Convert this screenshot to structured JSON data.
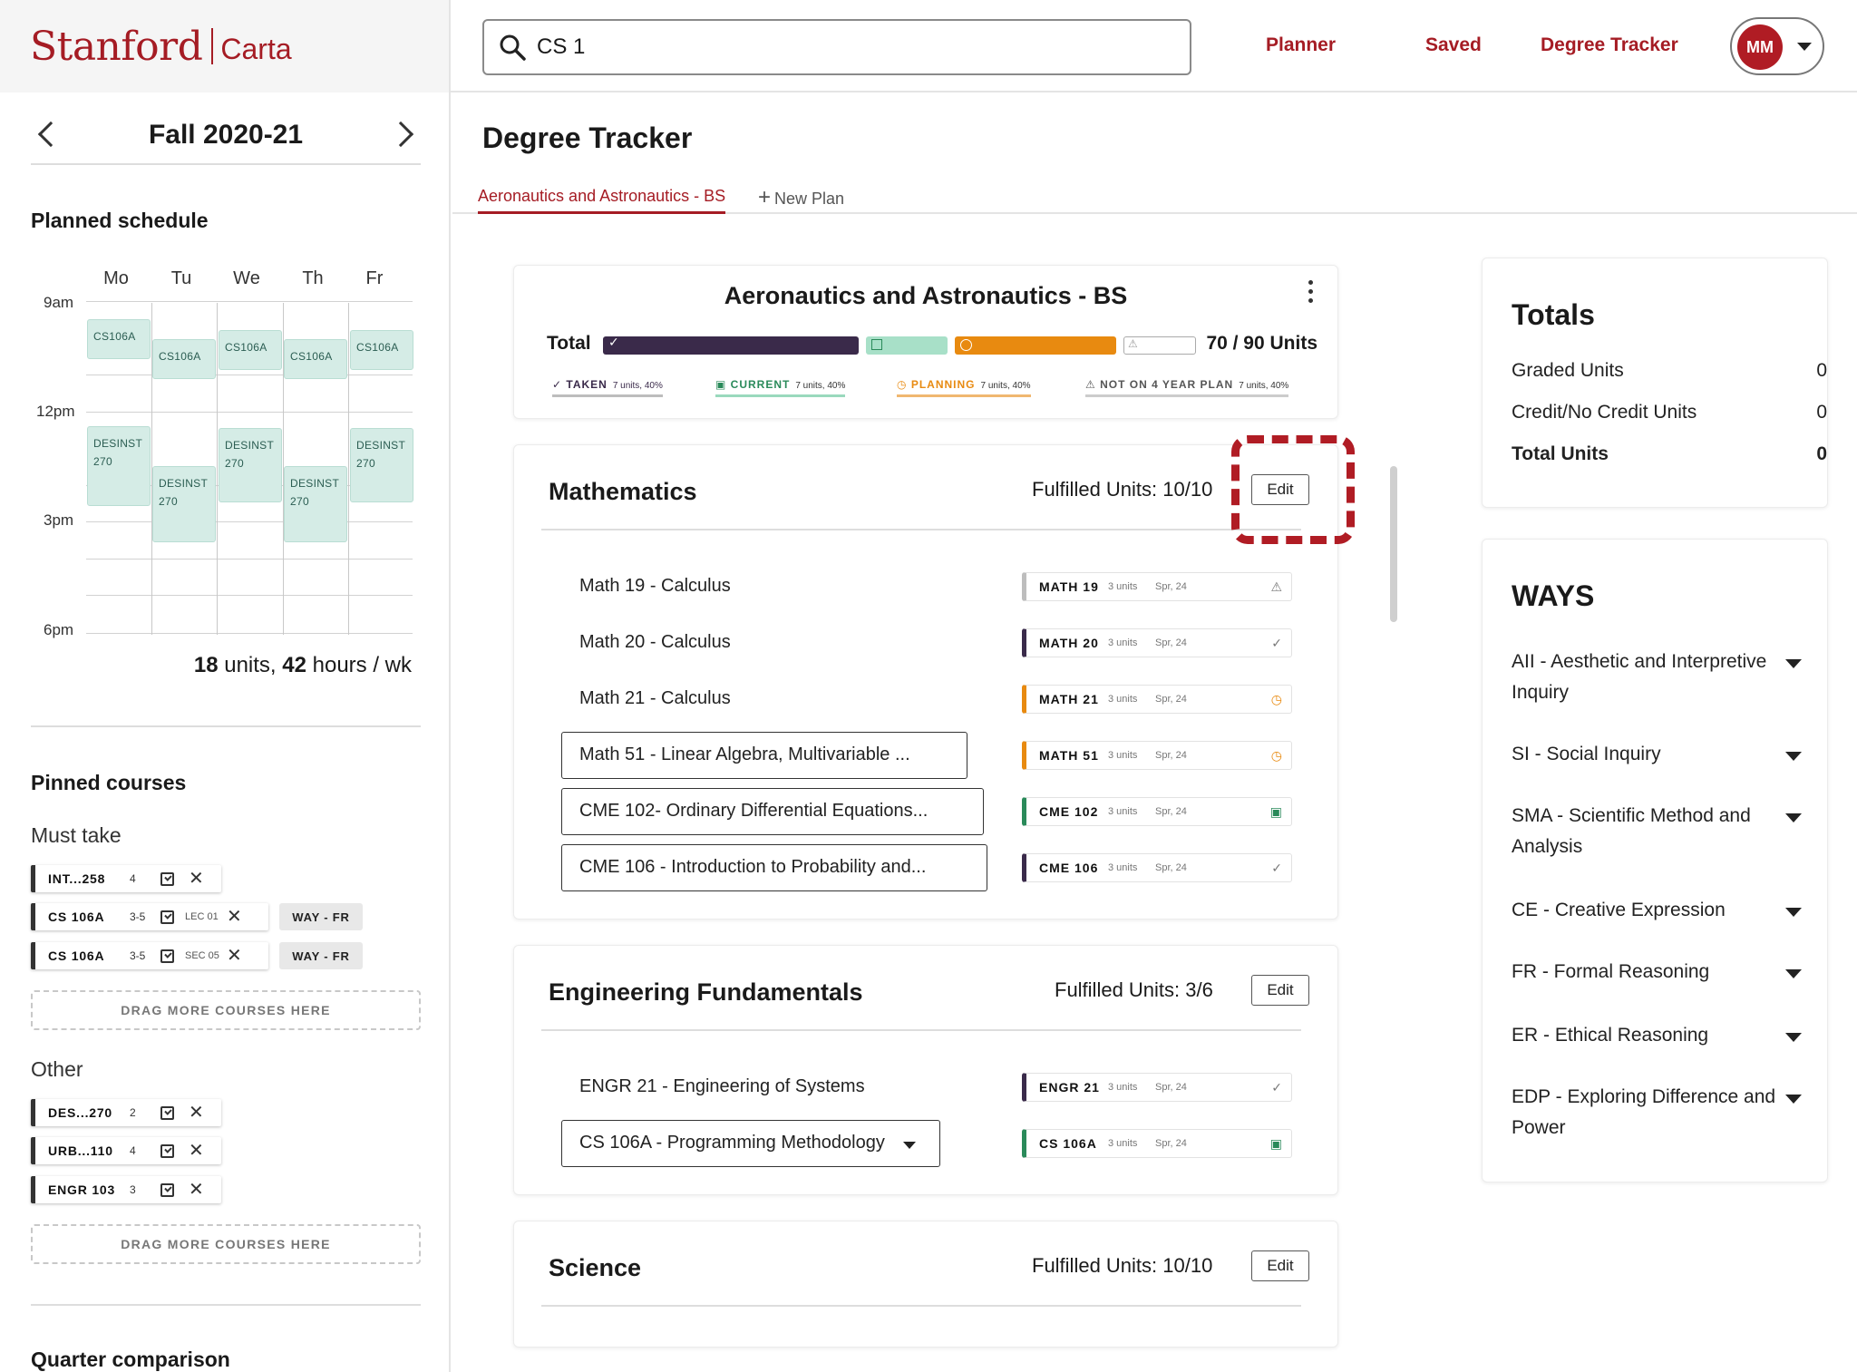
{
  "brand": {
    "name": "Stanford",
    "product": "Carta"
  },
  "search": {
    "value": "CS 1",
    "placeholder": ""
  },
  "nav": {
    "planner": "Planner",
    "saved": "Saved",
    "degree_tracker": "Degree Tracker",
    "avatar_initials": "MM"
  },
  "sidebar": {
    "term": "Fall 2020-21",
    "planned_schedule_title": "Planned schedule",
    "days": [
      "Mo",
      "Tu",
      "We",
      "Th",
      "Fr"
    ],
    "times": [
      "9am",
      "12pm",
      "3pm",
      "6pm"
    ],
    "blocks": [
      {
        "l1": "CS106A",
        "l2": ""
      },
      {
        "l1": "CS106A",
        "l2": ""
      },
      {
        "l1": "CS106A",
        "l2": ""
      },
      {
        "l1": "CS106A",
        "l2": ""
      },
      {
        "l1": "CS106A",
        "l2": ""
      },
      {
        "l1": "DESINST",
        "l2": "270"
      },
      {
        "l1": "DESINST",
        "l2": "270"
      },
      {
        "l1": "DESINST",
        "l2": "270"
      },
      {
        "l1": "DESINST",
        "l2": "270"
      },
      {
        "l1": "DESINST",
        "l2": "270"
      }
    ],
    "units_count": "18",
    "units_text": " units, ",
    "hours_count": "42",
    "hours_text": " hours / wk",
    "pinned_title": "Pinned courses",
    "must_take_title": "Must take",
    "must_take": [
      {
        "code": "INT...258",
        "units": "4",
        "section": "",
        "way": ""
      },
      {
        "code": "CS 106A",
        "units": "3-5",
        "section": "LEC 01",
        "way": "WAY - FR"
      },
      {
        "code": "CS 106A",
        "units": "3-5",
        "section": "SEC 05",
        "way": "WAY - FR"
      }
    ],
    "drag_more": "DRAG MORE COURSES HERE",
    "other_title": "Other",
    "other": [
      {
        "code": "DES...270",
        "units": "2"
      },
      {
        "code": "URB...110",
        "units": "4"
      },
      {
        "code": "ENGR 103",
        "units": "3"
      }
    ],
    "quarter_comparison_title": "Quarter comparison"
  },
  "main": {
    "title": "Degree Tracker",
    "tabs": {
      "active": "Aeronautics and Astronautics - BS",
      "new_plan": "New Plan"
    },
    "summary": {
      "title": "Aeronautics and Astronautics - BS",
      "total_label": "Total",
      "total_value": "70 / 90 Units",
      "legend": [
        {
          "label": "TAKEN",
          "detail": "7 units, 40%",
          "color": "#3a2a4a"
        },
        {
          "label": "CURRENT",
          "detail": "7 units, 40%",
          "color": "#2a8a5a"
        },
        {
          "label": "PLANNING",
          "detail": "7 units, 40%",
          "color": "#e88a10"
        },
        {
          "label": "NOT ON 4 YEAR PLAN",
          "detail": "7 units, 40%",
          "color": "#9a9a9a"
        }
      ]
    },
    "requirements": [
      {
        "title": "Mathematics",
        "fulfilled": "Fulfilled Units: 10/10",
        "edit": "Edit",
        "courses": [
          {
            "name": "Math 19  - Calculus",
            "code": "MATH 19",
            "units": "3 units",
            "term": "Spr, 24",
            "status": "warning"
          },
          {
            "name": "Math 20  - Calculus",
            "code": "MATH 20",
            "units": "3 units",
            "term": "Spr, 24",
            "status": "taken"
          },
          {
            "name": "Math 21  - Calculus",
            "code": "MATH 21",
            "units": "3 units",
            "term": "Spr, 24",
            "status": "planning"
          },
          {
            "name": "Math 51 - Linear Algebra, Multivariable ...",
            "code": "MATH 51",
            "units": "3 units",
            "term": "Spr, 24",
            "status": "planning"
          },
          {
            "name": "CME 102- Ordinary Differential Equations...",
            "code": "CME 102",
            "units": "3 units",
            "term": "Spr, 24",
            "status": "current"
          },
          {
            "name": "CME 106 - Introduction to Probability and...",
            "code": "CME 106",
            "units": "3 units",
            "term": "Spr, 24",
            "status": "taken"
          }
        ]
      },
      {
        "title": "Engineering Fundamentals",
        "fulfilled": "Fulfilled Units: 3/6",
        "edit": "Edit",
        "courses": [
          {
            "name": "ENGR 21 - Engineering of Systems",
            "code": "ENGR 21",
            "units": "3 units",
            "term": "Spr, 24",
            "status": "taken"
          },
          {
            "name": "CS 106A - Programming Methodology",
            "code": "CS 106A",
            "units": "3 units",
            "term": "Spr, 24",
            "status": "current"
          }
        ]
      },
      {
        "title": "Science",
        "fulfilled": "Fulfilled Units: 10/10",
        "edit": "Edit",
        "courses": []
      }
    ]
  },
  "totals": {
    "title": "Totals",
    "rows": [
      {
        "label": "Graded Units",
        "value": "0"
      },
      {
        "label": "Credit/No Credit Units",
        "value": "0"
      },
      {
        "label": "Total Units",
        "value": "0"
      }
    ]
  },
  "ways": {
    "title": "WAYS",
    "items": [
      "AII - Aesthetic and Interpretive Inquiry",
      "SI - Social Inquiry",
      "SMA - Scientific Method and Analysis",
      "CE - Creative Expression",
      "FR - Formal Reasoning",
      "ER - Ethical Reasoning",
      "EDP - Exploring Difference and Power"
    ]
  },
  "colors": {
    "brand_red": "#a51c24",
    "taken": "#3a2a4a",
    "current": "#2a8a5a",
    "planning": "#e88a10",
    "schedule_block": "#d5ece6"
  },
  "progress": {
    "taken_fraction": 0.5,
    "current_fraction": 0.16,
    "planning_fraction": 0.3,
    "not_on_plan_fraction": 0.1
  }
}
